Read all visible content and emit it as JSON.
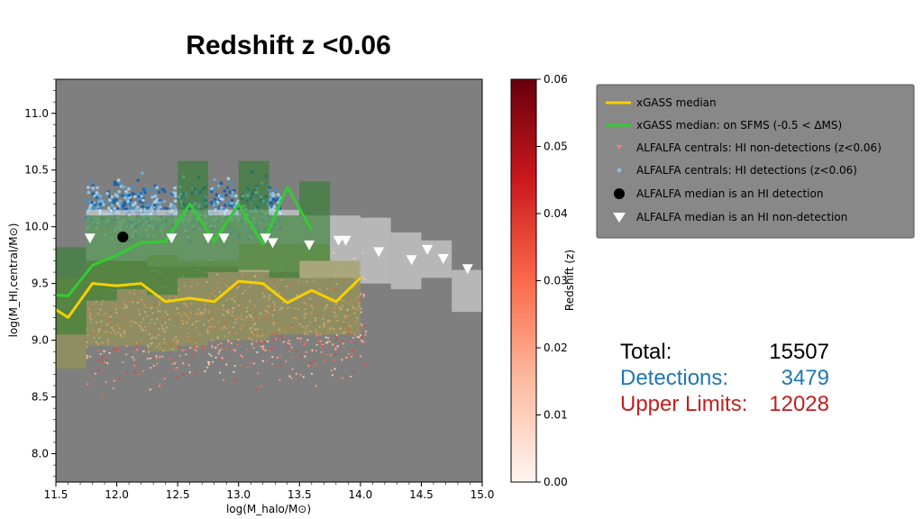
{
  "title": "Redshift z <0.06",
  "chart_data": {
    "type": "scatter",
    "xlabel": "log(M_halo/M⊙)",
    "ylabel": "log(M_HI,central/M⊙)",
    "xlim": [
      11.5,
      15.0
    ],
    "ylim": [
      7.75,
      11.3
    ],
    "xticks": [
      "11.5",
      "12.0",
      "12.5",
      "13.0",
      "13.5",
      "14.0",
      "14.5",
      "15.0"
    ],
    "yticks": [
      "8.0",
      "8.5",
      "9.0",
      "9.5",
      "10.0",
      "10.5",
      "11.0"
    ],
    "colorbar": {
      "label": "Redshift (z)",
      "range": [
        0.0,
        0.06
      ],
      "ticks": [
        "0.00",
        "0.01",
        "0.02",
        "0.03",
        "0.04",
        "0.05",
        "0.06"
      ]
    },
    "legend": {
      "placement": "outside-right",
      "entries": [
        "xGASS median",
        "xGASS median: on SFMS (-0.5 < ΔMS)",
        "ALFALFA centrals: HI non-detections (z<0.06)",
        "ALFALFA centrals: HI detections (z<0.06)",
        "ALFALFA median is an HI detection",
        "ALFALFA median is an HI non-detection"
      ]
    },
    "series": [
      {
        "name": "xGASS median",
        "color": "#f5d000",
        "x": [
          11.5,
          11.6,
          11.8,
          12.0,
          12.2,
          12.4,
          12.6,
          12.8,
          13.0,
          13.2,
          13.4,
          13.6,
          13.8,
          14.0
        ],
        "y": [
          9.27,
          9.2,
          9.5,
          9.48,
          9.5,
          9.34,
          9.37,
          9.34,
          9.52,
          9.5,
          9.33,
          9.44,
          9.34,
          9.55
        ]
      },
      {
        "name": "xGASS median: on SFMS (-0.5 < ΔMS)",
        "color": "#33cc33",
        "x": [
          11.5,
          11.6,
          11.8,
          12.0,
          12.2,
          12.4,
          12.6,
          12.8,
          13.0,
          13.2,
          13.4,
          13.6
        ],
        "y": [
          9.4,
          9.39,
          9.66,
          9.75,
          9.86,
          9.87,
          10.2,
          9.87,
          10.2,
          9.85,
          10.35,
          9.97
        ]
      },
      {
        "name": "ALFALFA median is an HI detection",
        "color": "#000000",
        "x": [
          12.05
        ],
        "y": [
          9.91
        ]
      },
      {
        "name": "ALFALFA median is an HI non-detection",
        "color": "#ffffff",
        "x": [
          11.78,
          12.45,
          12.75,
          12.88,
          13.22,
          13.28,
          13.58,
          13.82,
          13.88,
          14.15,
          14.42,
          14.55,
          14.68,
          14.88
        ],
        "y": [
          9.9,
          9.9,
          9.9,
          9.9,
          9.9,
          9.86,
          9.84,
          9.88,
          9.88,
          9.78,
          9.71,
          9.8,
          9.72,
          9.63
        ]
      }
    ],
    "bands": {
      "green": [
        {
          "x": [
            11.5,
            11.75
          ],
          "y": [
            9.05,
            9.82
          ]
        },
        {
          "x": [
            11.75,
            12.0
          ],
          "y": [
            9.35,
            10.1
          ]
        },
        {
          "x": [
            12.0,
            12.25
          ],
          "y": [
            9.45,
            10.1
          ]
        },
        {
          "x": [
            12.25,
            12.5
          ],
          "y": [
            9.4,
            10.1
          ]
        },
        {
          "x": [
            12.5,
            12.75
          ],
          "y": [
            9.55,
            10.58
          ]
        },
        {
          "x": [
            12.75,
            13.0
          ],
          "y": [
            9.6,
            10.1
          ]
        },
        {
          "x": [
            13.0,
            13.25
          ],
          "y": [
            9.62,
            10.58
          ]
        },
        {
          "x": [
            13.25,
            13.5
          ],
          "y": [
            9.55,
            10.1
          ]
        },
        {
          "x": [
            13.5,
            13.75
          ],
          "y": [
            9.7,
            10.4
          ]
        }
      ],
      "yellow": [
        {
          "x": [
            11.5,
            11.75
          ],
          "y": [
            8.75,
            9.55
          ]
        },
        {
          "x": [
            11.75,
            12.0
          ],
          "y": [
            8.95,
            9.7
          ]
        },
        {
          "x": [
            12.0,
            12.25
          ],
          "y": [
            8.95,
            9.7
          ]
        },
        {
          "x": [
            12.25,
            12.5
          ],
          "y": [
            8.9,
            9.75
          ]
        },
        {
          "x": [
            12.5,
            12.75
          ],
          "y": [
            8.95,
            9.7
          ]
        },
        {
          "x": [
            12.75,
            13.0
          ],
          "y": [
            9.0,
            9.7
          ]
        },
        {
          "x": [
            13.0,
            13.25
          ],
          "y": [
            9.0,
            9.85
          ]
        },
        {
          "x": [
            13.25,
            13.5
          ],
          "y": [
            9.05,
            9.85
          ]
        },
        {
          "x": [
            13.5,
            13.75
          ],
          "y": [
            9.05,
            9.85
          ]
        },
        {
          "x": [
            13.75,
            14.0
          ],
          "y": [
            9.05,
            9.7
          ]
        }
      ],
      "grey": [
        {
          "x": [
            11.75,
            12.0
          ],
          "y": [
            9.7,
            10.15
          ]
        },
        {
          "x": [
            12.0,
            12.25
          ],
          "y": [
            9.7,
            10.15
          ]
        },
        {
          "x": [
            12.25,
            12.5
          ],
          "y": [
            9.65,
            10.15
          ]
        },
        {
          "x": [
            12.5,
            12.75
          ],
          "y": [
            9.65,
            10.15
          ]
        },
        {
          "x": [
            12.75,
            13.0
          ],
          "y": [
            9.65,
            10.15
          ]
        },
        {
          "x": [
            13.0,
            13.25
          ],
          "y": [
            9.6,
            10.15
          ]
        },
        {
          "x": [
            13.25,
            13.5
          ],
          "y": [
            9.6,
            10.15
          ]
        },
        {
          "x": [
            13.5,
            13.75
          ],
          "y": [
            9.55,
            10.1
          ]
        },
        {
          "x": [
            13.75,
            14.0
          ],
          "y": [
            9.55,
            10.1
          ]
        },
        {
          "x": [
            14.0,
            14.25
          ],
          "y": [
            9.5,
            10.08
          ]
        },
        {
          "x": [
            14.25,
            14.5
          ],
          "y": [
            9.45,
            9.95
          ]
        },
        {
          "x": [
            14.5,
            14.75
          ],
          "y": [
            9.55,
            9.88
          ]
        },
        {
          "x": [
            14.75,
            15.0
          ],
          "y": [
            9.25,
            9.62
          ]
        }
      ]
    }
  },
  "stats": {
    "total_label": "Total:",
    "total_value": "15507",
    "detections_label": "Detections:",
    "detections_value": "3479",
    "upper_label": "Upper Limits:",
    "upper_value": "12028",
    "colors": {
      "total": "#000000",
      "detections": "#1f77b4",
      "upper": "#c41e1e"
    }
  }
}
